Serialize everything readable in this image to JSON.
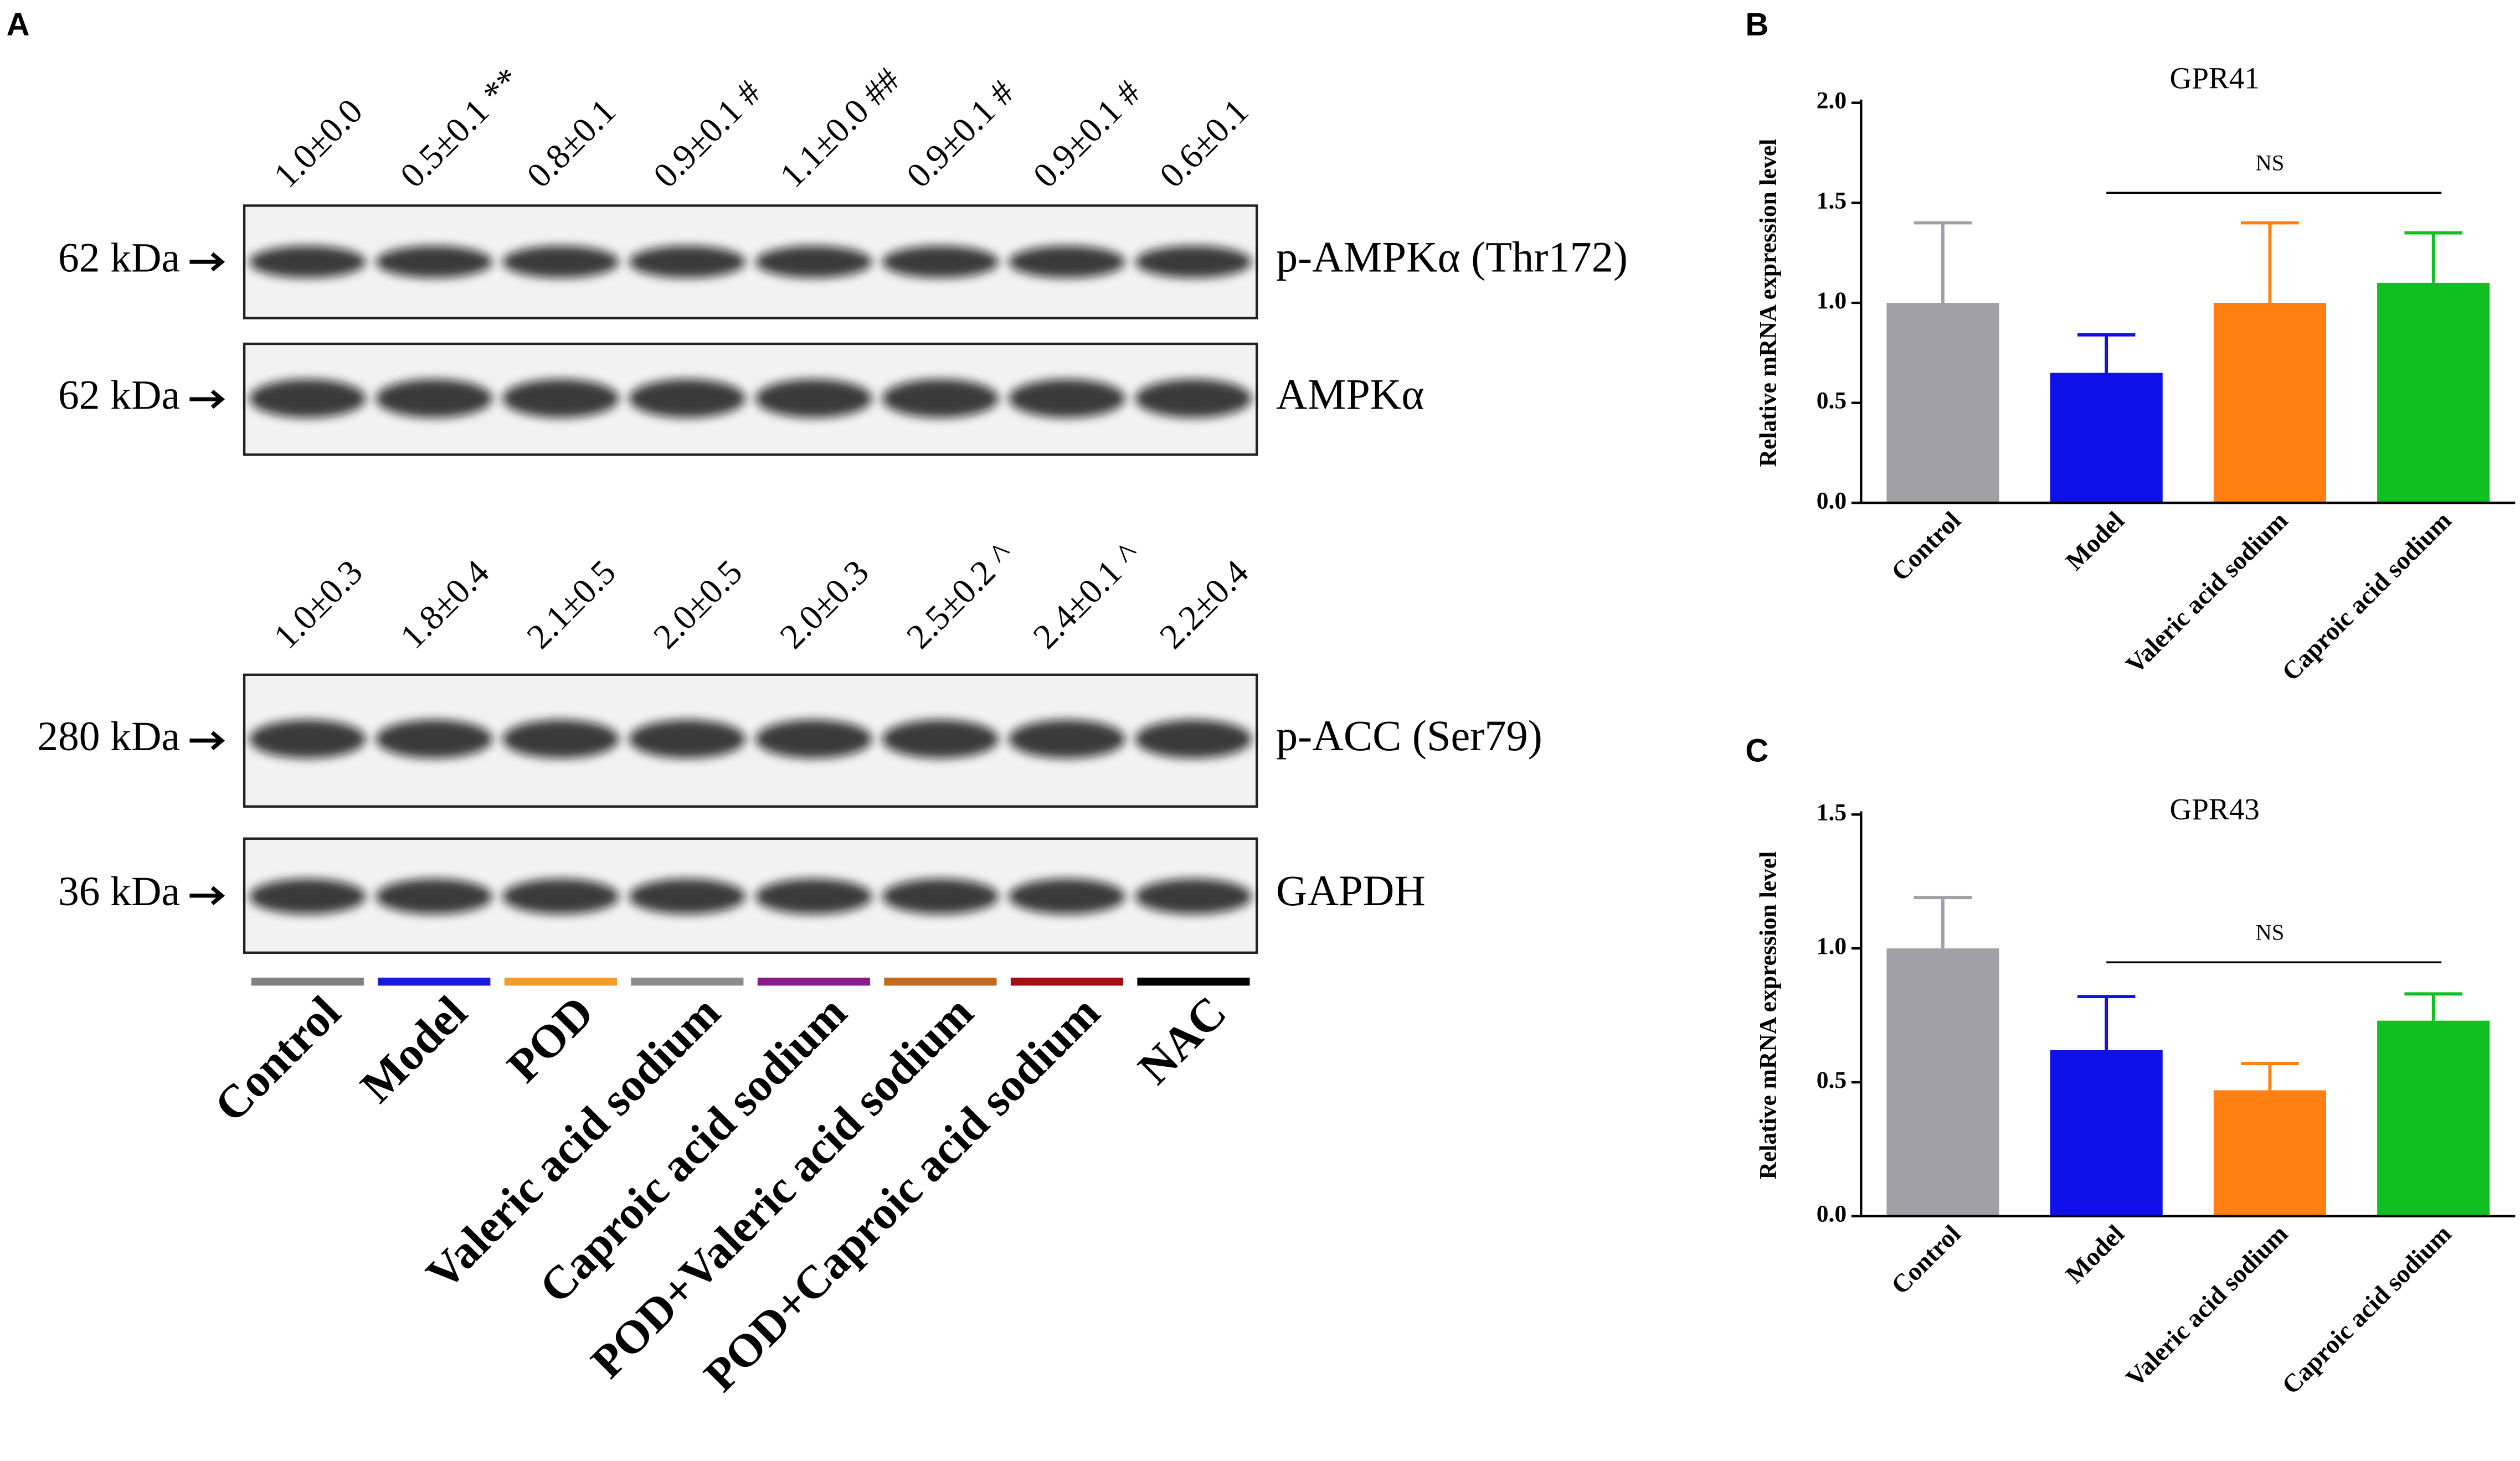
{
  "panel_a": {
    "label": "A",
    "markers": [
      "62 kDa",
      "62 kDa",
      "280 kDa",
      "36 kDa"
    ],
    "bands": [
      "p-AMPKα (Thr172)",
      "AMPKα",
      "p-ACC (Ser79)",
      "GAPDH"
    ],
    "quant_top": [
      "1.0±0.0",
      "0.5±0.1 **",
      "0.8±0.1",
      "0.9±0.1 #",
      "1.1±0.0 ##",
      "0.9±0.1 #",
      "0.9±0.1 #",
      "0.6±0.1"
    ],
    "quant_bottom": [
      "1.0±0.3",
      "1.8±0.4",
      "2.1±0.5",
      "2.0±0.5",
      "2.0±0.3",
      "2.5±0.2 ^",
      "2.4±0.1 ^",
      "2.2±0.4"
    ],
    "lanes": [
      {
        "name": "Control",
        "color": "#808080"
      },
      {
        "name": "Model",
        "color": "#1a1adc"
      },
      {
        "name": "POD",
        "color": "#f59a2c"
      },
      {
        "name": "Valeric acid sodium",
        "color": "#8c8c8c"
      },
      {
        "name": "Caproic acid sodium",
        "color": "#8b1a8b"
      },
      {
        "name": "POD+Valeric acid sodium",
        "color": "#c06a1e"
      },
      {
        "name": "POD+Caproic acid sodium",
        "color": "#a01010"
      },
      {
        "name": "NAC",
        "color": "#000000"
      }
    ]
  },
  "chart_data": [
    {
      "type": "bar",
      "label": "B",
      "title": "GPR41",
      "y_label": "Relative mRNA expression level",
      "categories": [
        "Control",
        "Model",
        "Valeric acid sodium",
        "Caproic acid sodium"
      ],
      "values": [
        1.0,
        0.65,
        1.0,
        1.1
      ],
      "errors": [
        0.4,
        0.19,
        0.4,
        0.25
      ],
      "colors": [
        "#a0a0a6",
        "#1010e8",
        "#ff8010",
        "#10c020"
      ],
      "ylim": [
        0,
        2
      ],
      "yticks": [
        {
          "value": 0,
          "label": "0.0"
        },
        {
          "value": 0.5,
          "label": "0.5"
        },
        {
          "value": 1,
          "label": "1.0"
        },
        {
          "value": 1.5,
          "label": "1.5"
        },
        {
          "value": 2,
          "label": "2.0"
        }
      ],
      "annotation": "NS"
    },
    {
      "type": "bar",
      "label": "C",
      "title": "GPR43",
      "y_label": "Relative mRNA expression level",
      "categories": [
        "Control",
        "Model",
        "Valeric acid sodium",
        "Caproic acid sodium"
      ],
      "values": [
        1.0,
        0.62,
        0.47,
        0.73
      ],
      "errors": [
        0.19,
        0.2,
        0.1,
        0.1
      ],
      "colors": [
        "#a0a0a6",
        "#1010e8",
        "#ff8010",
        "#10c020"
      ],
      "ylim": [
        0,
        1.5
      ],
      "yticks": [
        {
          "value": 0,
          "label": "0.0"
        },
        {
          "value": 0.5,
          "label": "0.5"
        },
        {
          "value": 1,
          "label": "1.0"
        },
        {
          "value": 1.5,
          "label": "1.5"
        }
      ],
      "annotation": "NS"
    }
  ]
}
